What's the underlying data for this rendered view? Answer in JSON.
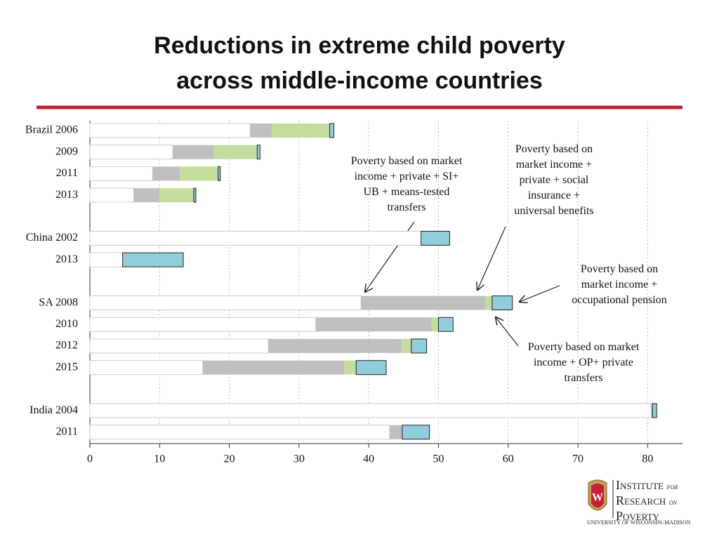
{
  "chart_data": {
    "type": "stacked-hbar",
    "title": "Reductions in extreme child poverty across middle-income countries",
    "categories": [
      "Brazil 2006",
      "2009",
      "2011",
      "2013",
      null,
      "China 2002",
      "2013",
      null,
      "SA 2008",
      "2010",
      "2012",
      "2015",
      null,
      "India 2004",
      "2011"
    ],
    "series": [
      {
        "color": "#ffffff",
        "values": [
          23,
          11.9,
          9.0,
          6.3,
          null,
          47.5,
          4.7,
          null,
          38.9,
          32.4,
          25.6,
          16.2,
          null,
          80.5,
          43.0
        ]
      },
      {
        "color": "#bfbfbf",
        "values": [
          3.1,
          5.9,
          3.9,
          3.7,
          null,
          0,
          0,
          null,
          17.8,
          16.6,
          19.1,
          20.3,
          null,
          0.2,
          1.8
        ]
      },
      {
        "color": "#c4dc9c",
        "values": [
          8.3,
          6.2,
          5.5,
          4.9,
          null,
          0,
          0,
          null,
          1.0,
          1.0,
          1.4,
          1.7,
          null,
          0,
          0
        ]
      },
      {
        "color": "#92cddc",
        "values": [
          0.6,
          0.4,
          0.3,
          0.3,
          null,
          4.1,
          8.7,
          null,
          2.9,
          2.1,
          2.2,
          4.3,
          null,
          0.6,
          3.9
        ]
      }
    ],
    "xlim": [
      0,
      85
    ],
    "xticks": [
      0,
      10,
      20,
      30,
      40,
      50,
      60,
      70,
      80
    ],
    "grid": true,
    "annotations": [
      "Poverty based on market income + private + SI+ UB + means-tested transfers",
      "Poverty based on market income + private + social insurance + universal benefits",
      "Poverty based on market income + occupational pension",
      "Poverty based on market income + OP+ private transfers"
    ]
  },
  "logo": {
    "institute": "Institute",
    "for": "for",
    "research": "Research",
    "on": "on",
    "poverty": "Poverty",
    "university": "University of Wisconsin–Madison"
  }
}
